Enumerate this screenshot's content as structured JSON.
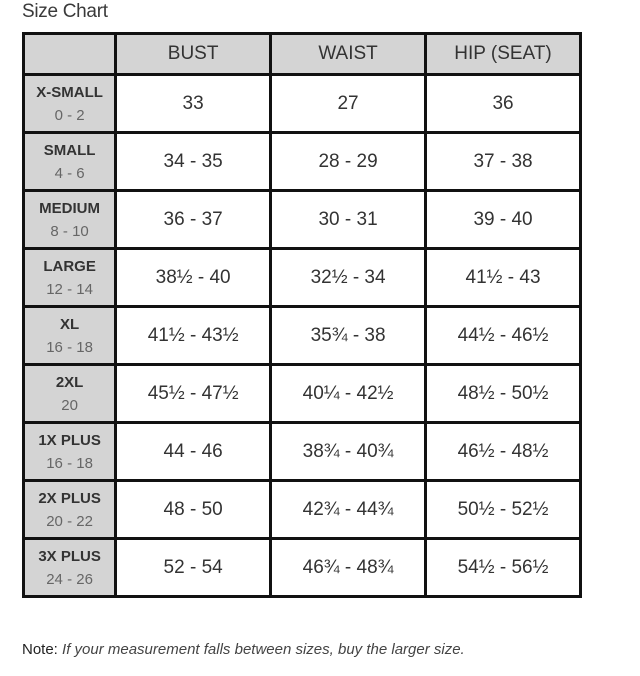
{
  "title": "Size Chart",
  "headers": [
    "",
    "BUST",
    "WAIST",
    "HIP (SEAT)"
  ],
  "rows": [
    {
      "size": "X-SMALL",
      "range": "0 - 2",
      "bust": "33",
      "waist": "27",
      "hip": "36"
    },
    {
      "size": "SMALL",
      "range": "4 - 6",
      "bust": "34 - 35",
      "waist": "28 - 29",
      "hip": "37 - 38"
    },
    {
      "size": "MEDIUM",
      "range": "8 - 10",
      "bust": "36 - 37",
      "waist": "30 - 31",
      "hip": "39 - 40"
    },
    {
      "size": "LARGE",
      "range": "12 - 14",
      "bust": "38½ - 40",
      "waist": "32½ - 34",
      "hip": "41½ - 43"
    },
    {
      "size": "XL",
      "range": "16 - 18",
      "bust": "41½ - 43½",
      "waist": "35¾ - 38",
      "hip": "44½ - 46½"
    },
    {
      "size": "2XL",
      "range": "20",
      "bust": "45½ - 47½",
      "waist": "40¼ - 42½",
      "hip": "48½ - 50½"
    },
    {
      "size": "1X PLUS",
      "range": "16 - 18",
      "bust": "44 - 46",
      "waist": "38¾ - 40¾",
      "hip": "46½ - 48½"
    },
    {
      "size": "2X PLUS",
      "range": "20 - 22",
      "bust": "48 - 50",
      "waist": "42¾ - 44¾",
      "hip": "50½ - 52½"
    },
    {
      "size": "3X PLUS",
      "range": "24 - 26",
      "bust": "52 - 54",
      "waist": "46¾ - 48¾",
      "hip": "54½ - 56½"
    }
  ],
  "note": {
    "label": "Note:",
    "text": "If your measurement falls between sizes, buy the larger size."
  },
  "colors": {
    "header_bg": "#d4d4d4",
    "border": "#111111"
  }
}
